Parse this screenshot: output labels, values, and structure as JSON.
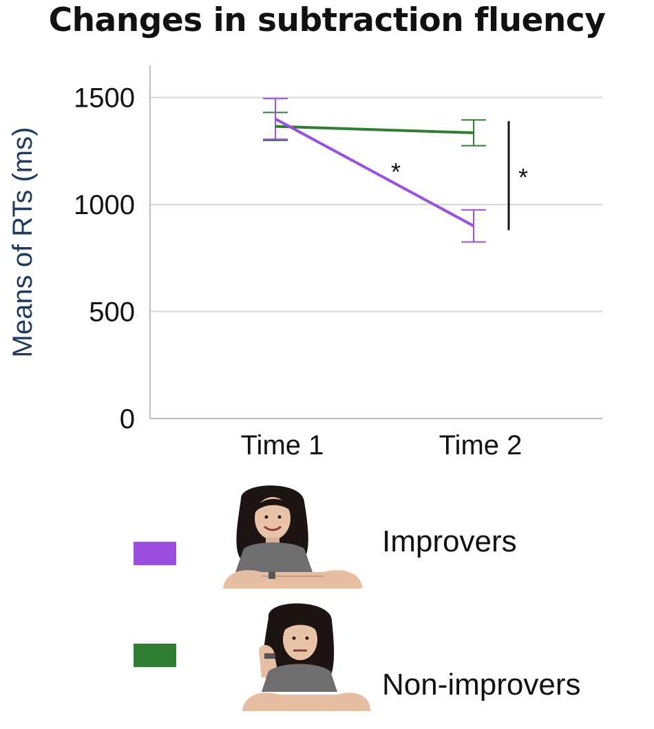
{
  "chart_data": {
    "type": "line",
    "title": "Changes in subtraction fluency",
    "xlabel": "",
    "ylabel": "Means of RTs (ms)",
    "categories": [
      "Time 1",
      "Time 2"
    ],
    "ylim": [
      0,
      1650
    ],
    "yticks": [
      0,
      500,
      1000,
      1500
    ],
    "grid": true,
    "legend_placement": "bottom",
    "series": [
      {
        "name": "Improvers",
        "color": "#9b4fe0",
        "values": [
          1400,
          900
        ],
        "error": [
          95,
          75
        ]
      },
      {
        "name": "Non-improvers",
        "color": "#2e7d32",
        "values": [
          1365,
          1335
        ],
        "error": [
          65,
          60
        ]
      }
    ],
    "annotations": [
      {
        "text": "*",
        "note": "within-group change for Improvers"
      },
      {
        "text": "*",
        "note": "between-group difference at Time 2"
      }
    ]
  },
  "legend": {
    "items": [
      {
        "label": "Improvers",
        "color": "#9b4fe0",
        "figure": "smiling-person-icon"
      },
      {
        "label": "Non-improvers",
        "color": "#2e7d32",
        "figure": "bored-person-icon"
      }
    ]
  }
}
